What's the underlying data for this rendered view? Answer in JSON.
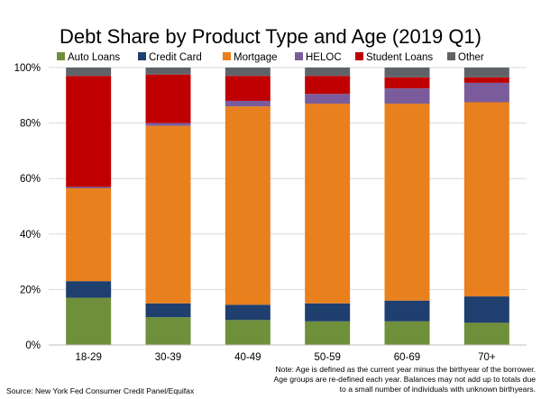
{
  "chart_data": {
    "type": "bar",
    "stacked": true,
    "title": "Debt Share by Product Type and Age (2019 Q1)",
    "xlabel": "",
    "ylabel": "",
    "ylim": [
      0,
      100
    ],
    "yticks": [
      "0%",
      "20%",
      "40%",
      "60%",
      "80%",
      "100%"
    ],
    "grid": true,
    "legend_position": "top",
    "categories": [
      "18-29",
      "30-39",
      "40-49",
      "50-59",
      "60-69",
      "70+"
    ],
    "series": [
      {
        "name": "Auto Loans",
        "color": "#6f8f3a",
        "values": [
          17,
          10,
          9,
          8.5,
          8.5,
          8
        ]
      },
      {
        "name": "Credit Card",
        "color": "#1f3f6f",
        "values": [
          6,
          5,
          5.5,
          6.5,
          7.5,
          9.5
        ]
      },
      {
        "name": "Mortgage",
        "color": "#e8801e",
        "values": [
          33.5,
          64,
          71.5,
          72,
          71,
          70
        ]
      },
      {
        "name": "HELOC",
        "color": "#7a5c9c",
        "values": [
          0.5,
          1,
          2,
          3.5,
          5.5,
          7
        ]
      },
      {
        "name": "Student Loans",
        "color": "#c00000",
        "values": [
          40,
          17.5,
          9,
          6.5,
          4,
          2
        ]
      },
      {
        "name": "Other",
        "color": "#5f6368",
        "values": [
          3,
          2.5,
          3,
          3,
          3.5,
          3.5
        ]
      }
    ]
  },
  "note": "Note: Age is defined as the current year minus the birthyear of the borrower. Age groups are re-defined each year. Balances may not add up to totals due to a small number of individuals with unknown birthyears.",
  "source": "Source: New York Fed Consumer Credit Panel/Equifax"
}
